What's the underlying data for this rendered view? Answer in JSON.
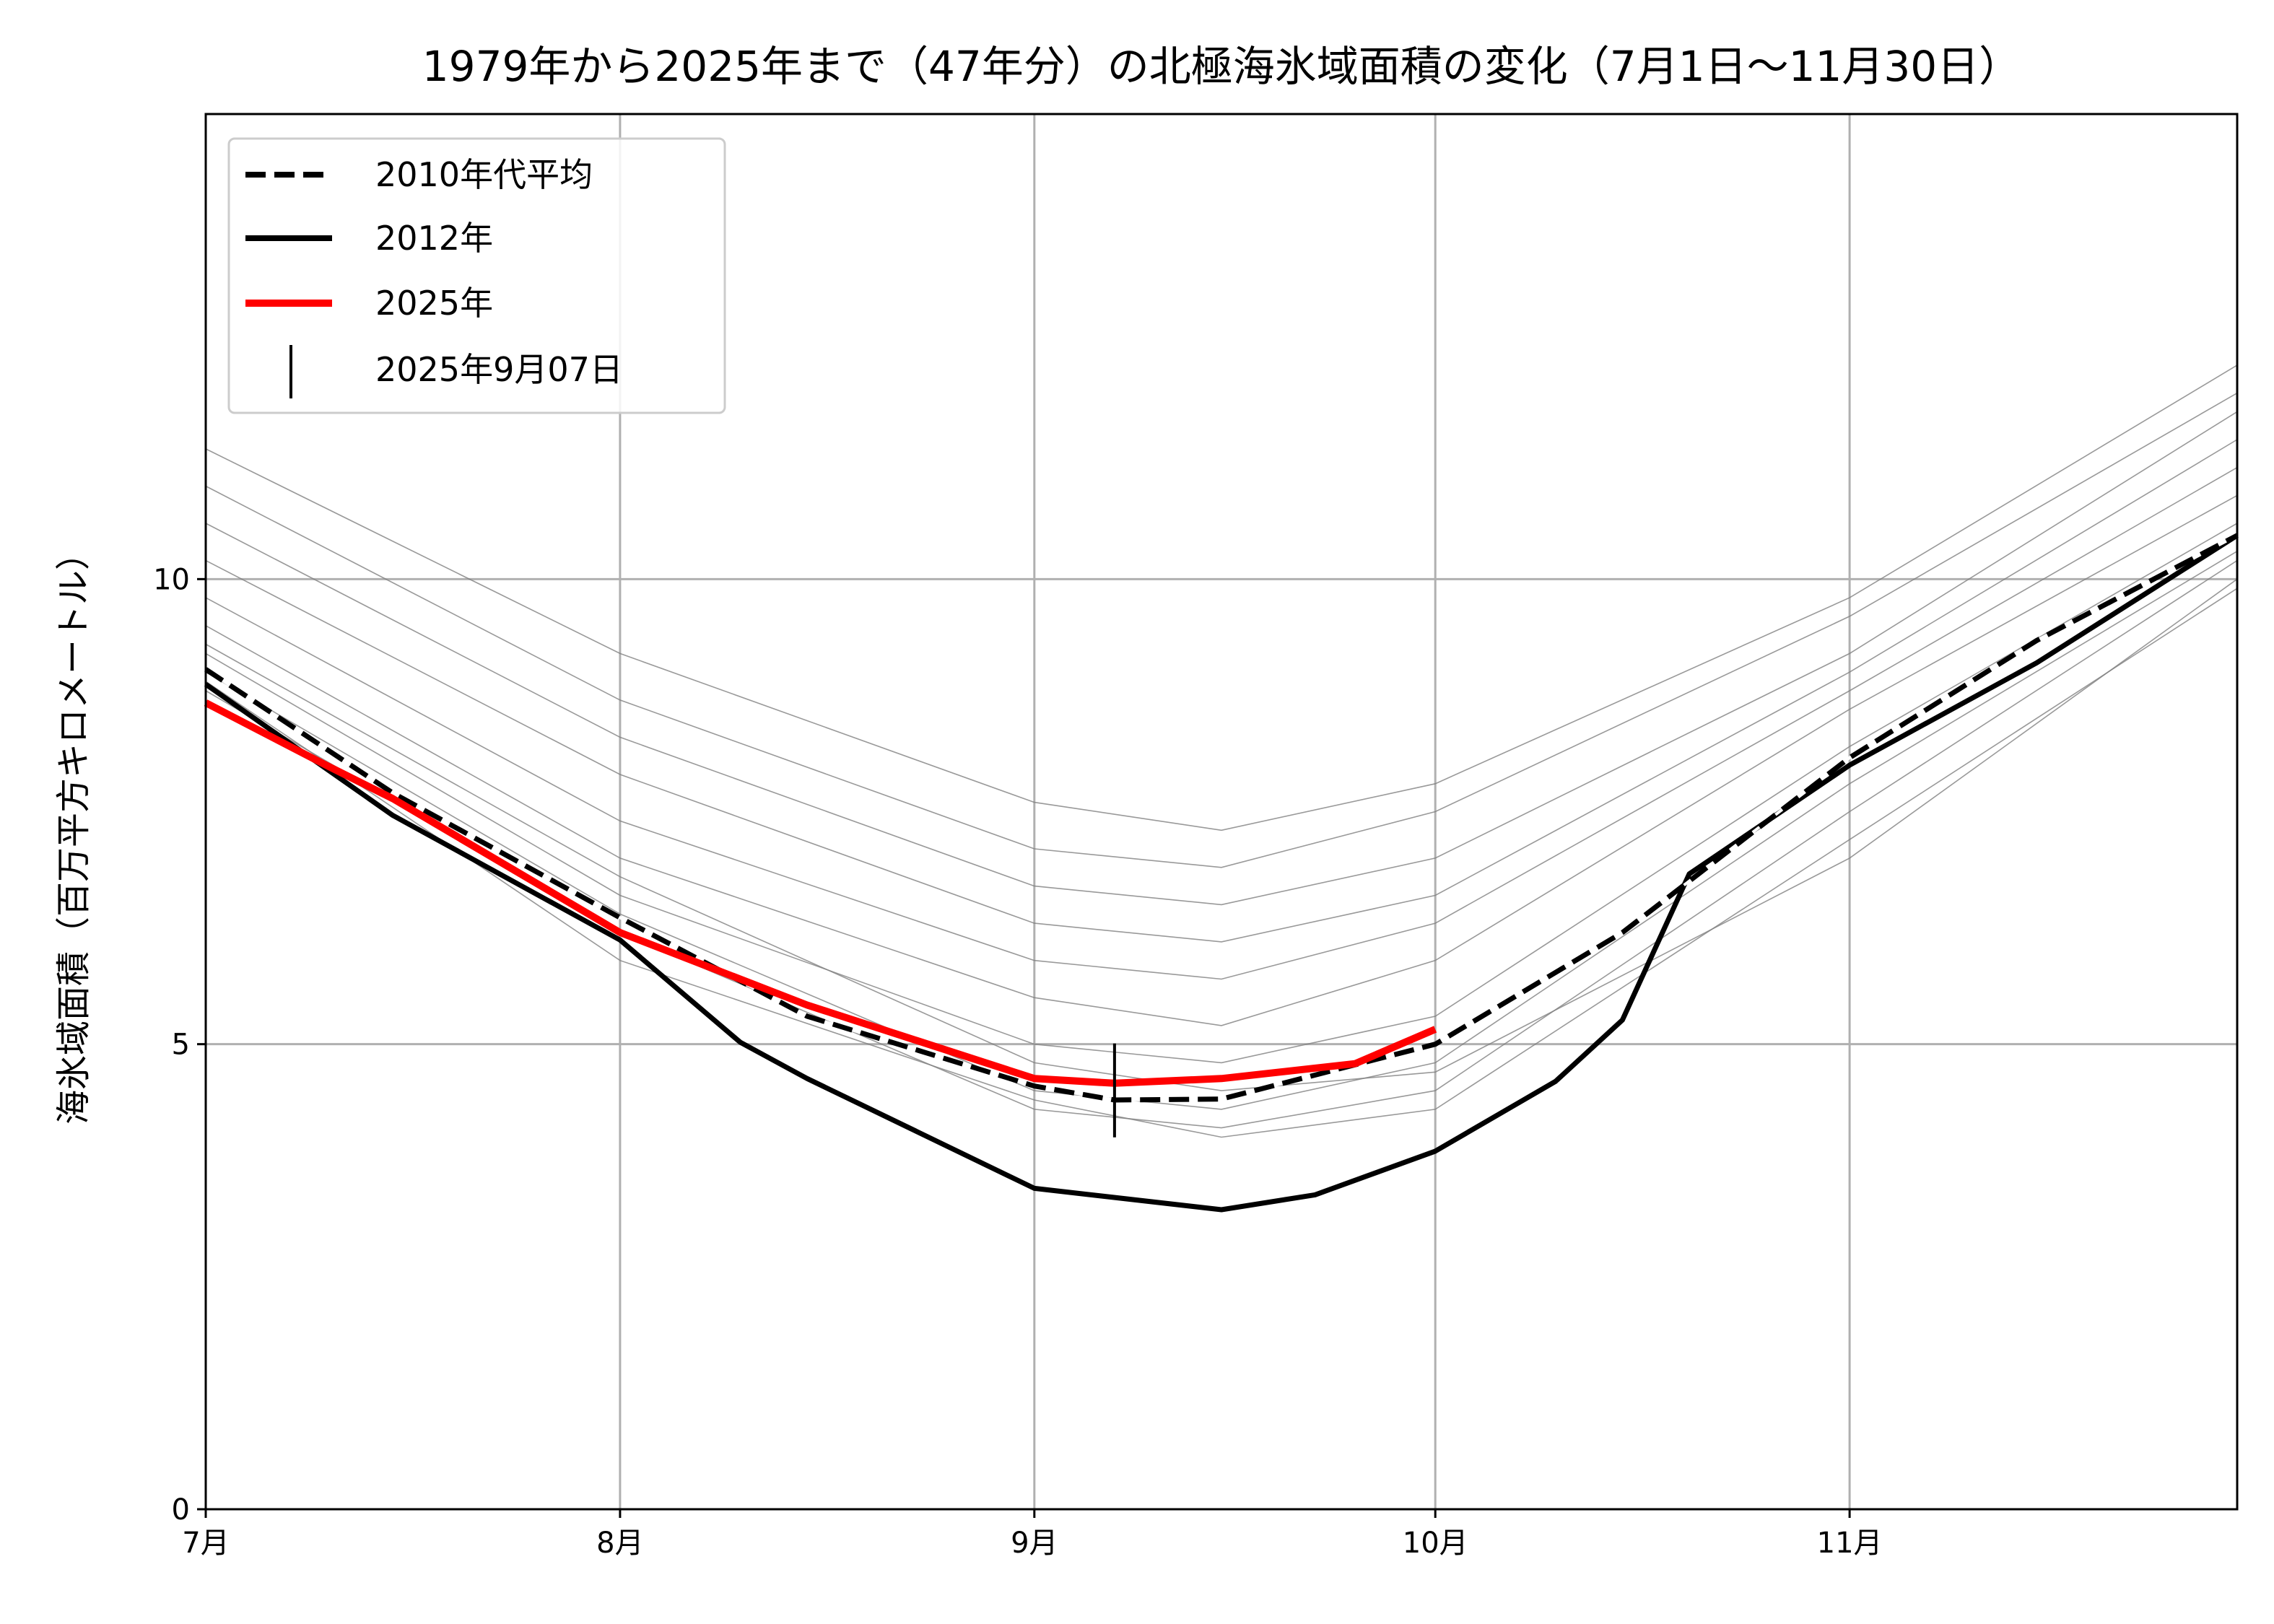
{
  "chart_data": {
    "type": "line",
    "title": "1979年から2025年まで（47年分）の北極海氷域面積の変化（7月1日〜11月30日）",
    "xlabel": "",
    "ylabel": "海氷域面積（百万平方キロメートル）",
    "xlim": [
      "07-01",
      "11-30"
    ],
    "ylim": [
      0,
      15
    ],
    "x_ticks": [
      {
        "date": "07-01",
        "label": "7月"
      },
      {
        "date": "08-01",
        "label": "8月"
      },
      {
        "date": "09-01",
        "label": "9月"
      },
      {
        "date": "10-01",
        "label": "10月"
      },
      {
        "date": "11-01",
        "label": "11月"
      }
    ],
    "y_ticks": [
      {
        "value": 0,
        "label": "0"
      },
      {
        "value": 5,
        "label": "5"
      },
      {
        "value": 10,
        "label": "10"
      }
    ],
    "grid": true,
    "legend_position": "top-left",
    "series": [
      {
        "name": "2010年代平均",
        "style": "dashed",
        "color": "#000000",
        "x": [
          "07-01",
          "07-15",
          "08-01",
          "08-15",
          "09-01",
          "09-07",
          "09-15",
          "10-01",
          "10-15",
          "11-01",
          "11-15",
          "11-30"
        ],
        "y": [
          9.03,
          7.7,
          6.36,
          5.3,
          4.55,
          4.4,
          4.41,
          5.0,
          6.2,
          8.08,
          9.34,
          10.47
        ]
      },
      {
        "name": "2012年",
        "style": "solid",
        "color": "#000000",
        "x": [
          "07-01",
          "07-15",
          "08-01",
          "08-10",
          "08-15",
          "09-01",
          "09-15",
          "09-22",
          "10-01",
          "10-10",
          "10-15",
          "10-20",
          "11-01",
          "11-15",
          "11-30"
        ],
        "y": [
          8.87,
          7.46,
          6.12,
          5.02,
          4.63,
          3.45,
          3.22,
          3.38,
          3.85,
          4.6,
          5.26,
          6.83,
          8.0,
          9.1,
          10.47
        ]
      },
      {
        "name": "2025年",
        "style": "solid",
        "color": "#ff0000",
        "x": [
          "07-01",
          "07-10",
          "07-15",
          "08-01",
          "08-15",
          "09-01",
          "09-07",
          "09-15",
          "09-25",
          "10-01"
        ],
        "y": [
          8.67,
          8.0,
          7.64,
          6.2,
          5.42,
          4.63,
          4.58,
          4.63,
          4.79,
          5.16
        ]
      }
    ],
    "marker": {
      "name": "2025年9月07日",
      "date": "09-07",
      "value": 4.58,
      "symbol": "vertical-line"
    },
    "background_years": {
      "color": "#808080",
      "x": [
        "07-01",
        "08-01",
        "09-01",
        "09-15",
        "10-01",
        "11-01",
        "11-30"
      ],
      "series": [
        [
          11.4,
          9.2,
          7.6,
          7.3,
          7.8,
          9.8,
          12.3
        ],
        [
          11.0,
          8.7,
          7.1,
          6.9,
          7.5,
          9.6,
          12.0
        ],
        [
          10.6,
          8.3,
          6.7,
          6.5,
          7.0,
          9.2,
          11.8
        ],
        [
          10.2,
          7.9,
          6.3,
          6.1,
          6.6,
          9.0,
          11.5
        ],
        [
          9.8,
          7.4,
          5.9,
          5.7,
          6.3,
          8.8,
          11.2
        ],
        [
          9.5,
          7.0,
          5.5,
          5.2,
          5.9,
          8.6,
          10.9
        ],
        [
          9.2,
          6.6,
          5.0,
          4.8,
          5.3,
          8.2,
          10.6
        ],
        [
          9.0,
          6.4,
          4.5,
          4.3,
          4.8,
          7.8,
          10.3
        ],
        [
          8.8,
          6.2,
          4.3,
          4.1,
          4.5,
          7.5,
          10.2
        ],
        [
          9.3,
          6.8,
          4.8,
          4.5,
          4.7,
          7.0,
          10.0
        ],
        [
          8.9,
          5.9,
          4.4,
          4.0,
          4.3,
          7.2,
          9.9
        ]
      ]
    }
  }
}
